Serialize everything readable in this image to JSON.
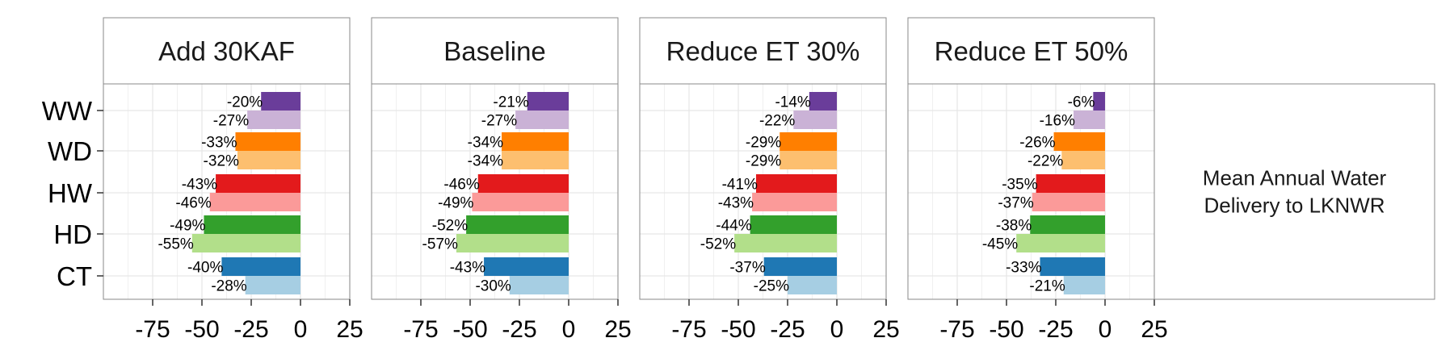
{
  "chart_data": {
    "type": "bar",
    "orientation": "horizontal",
    "facets": [
      "Add 30KAF",
      "Baseline",
      "Reduce ET 30%",
      "Reduce ET 50%"
    ],
    "categories": [
      "WW",
      "WD",
      "HW",
      "HD",
      "CT"
    ],
    "xlim": [
      -100,
      25
    ],
    "xticks": [
      -75,
      -50,
      -25,
      0,
      25
    ],
    "xtick_labels": [
      "-75",
      "-50",
      "-25",
      "0",
      "25"
    ],
    "grid": true,
    "legend_label": "Mean Annual Water\n Delivery to LKNWR",
    "colors": {
      "WW": [
        "#6a3d9a",
        "#cab2d6"
      ],
      "WD": [
        "#ff7f00",
        "#fdbf6f"
      ],
      "HW": [
        "#e31a1c",
        "#fb9a99"
      ],
      "HD": [
        "#33a02c",
        "#b2df8a"
      ],
      "CT": [
        "#1f78b4",
        "#a6cee3"
      ]
    },
    "panels": [
      {
        "name": "Add 30KAF",
        "bars": {
          "WW": [
            -20,
            -27
          ],
          "WD": [
            -33,
            -32
          ],
          "HW": [
            -43,
            -46
          ],
          "HD": [
            -49,
            -55
          ],
          "CT": [
            -40,
            -28
          ]
        }
      },
      {
        "name": "Baseline",
        "bars": {
          "WW": [
            -21,
            -27
          ],
          "WD": [
            -34,
            -34
          ],
          "HW": [
            -46,
            -49
          ],
          "HD": [
            -52,
            -57
          ],
          "CT": [
            -43,
            -30
          ]
        }
      },
      {
        "name": "Reduce ET 30%",
        "bars": {
          "WW": [
            -14,
            -22
          ],
          "WD": [
            -29,
            -29
          ],
          "HW": [
            -41,
            -43
          ],
          "HD": [
            -44,
            -52
          ],
          "CT": [
            -37,
            -25
          ]
        }
      },
      {
        "name": "Reduce ET 50%",
        "bars": {
          "WW": [
            -6,
            -16
          ],
          "WD": [
            -26,
            -22
          ],
          "HW": [
            -35,
            -37
          ],
          "HD": [
            -38,
            -45
          ],
          "CT": [
            -33,
            -21
          ]
        }
      }
    ]
  }
}
